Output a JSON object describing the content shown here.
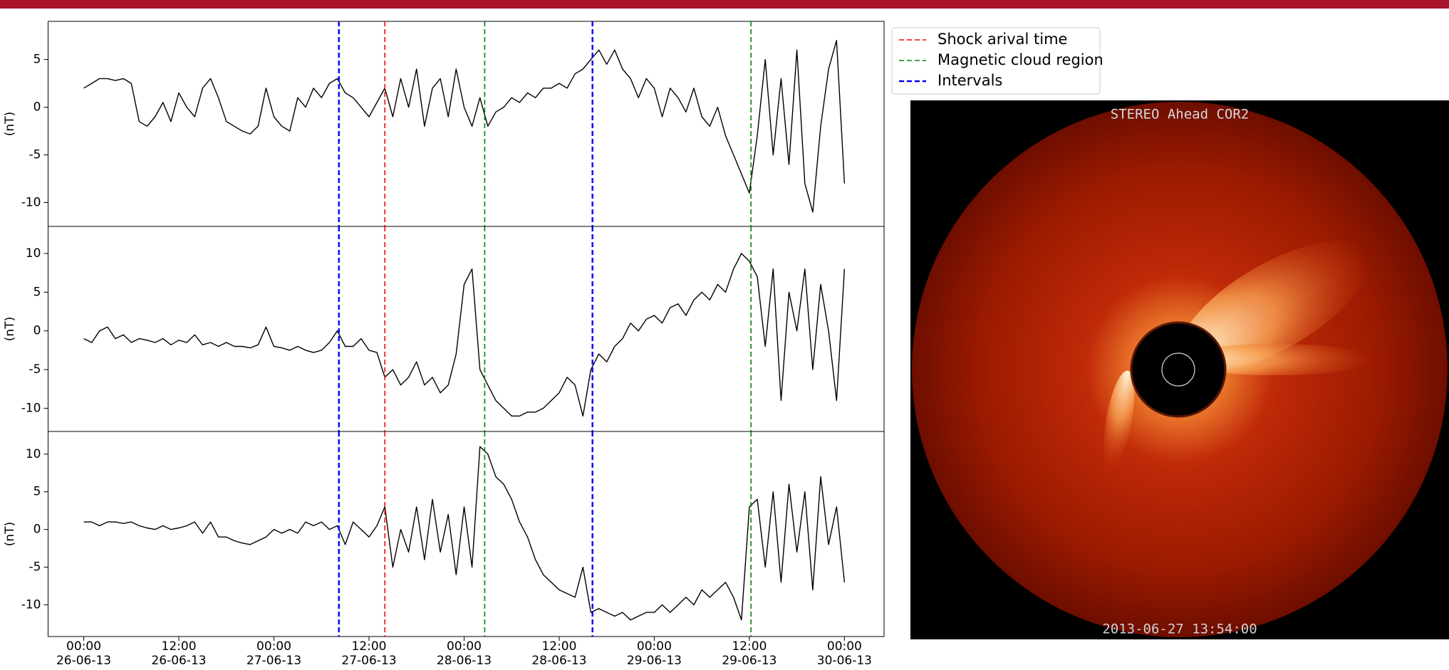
{
  "chart_data": [
    {
      "type": "line",
      "ylabel": "(nT)",
      "xlim": [
        -4.5,
        101
      ],
      "ylim": [
        -12.5,
        9
      ],
      "yticks": [
        -10,
        -5,
        0,
        5
      ],
      "x": [
        0,
        1,
        2,
        3,
        4,
        5,
        6,
        7,
        8,
        9,
        10,
        11,
        12,
        13,
        14,
        15,
        16,
        17,
        18,
        19,
        20,
        21,
        22,
        23,
        24,
        25,
        26,
        27,
        28,
        29,
        30,
        31,
        32,
        33,
        34,
        35,
        36,
        37,
        38,
        39,
        40,
        41,
        42,
        43,
        44,
        45,
        46,
        47,
        48,
        49,
        50,
        51,
        52,
        53,
        54,
        55,
        56,
        57,
        58,
        59,
        60,
        61,
        62,
        63,
        64,
        65,
        66,
        67,
        68,
        69,
        70,
        71,
        72,
        73,
        74,
        75,
        76,
        77,
        78,
        79,
        80,
        81,
        82,
        83,
        84,
        85,
        86,
        87,
        88,
        89,
        90,
        91,
        92,
        93,
        94,
        95,
        96
      ],
      "series": [
        {
          "color": "#000000",
          "values": [
            2,
            2.5,
            3,
            3,
            2.8,
            3,
            2.5,
            -1.5,
            -2,
            -1,
            0.5,
            -1.5,
            1.5,
            0,
            -1,
            2,
            3,
            1,
            -1.5,
            -2,
            -2.5,
            -2.8,
            -2,
            2,
            -1,
            -2,
            -2.5,
            1,
            0,
            2,
            1,
            2.5,
            3,
            1.5,
            1,
            0,
            -1,
            0.5,
            2,
            -1,
            3,
            0,
            4,
            -2,
            2,
            3,
            -1,
            4,
            0,
            -2,
            1,
            -2,
            -0.5,
            0,
            1,
            0.5,
            1.5,
            1,
            2,
            2,
            2.5,
            2,
            3.5,
            4,
            5,
            6,
            4.5,
            6,
            4,
            3,
            1,
            3,
            2,
            -1,
            2,
            1,
            -0.5,
            2,
            -1,
            -2,
            0,
            -3,
            -5,
            -7,
            -9,
            -3,
            5,
            -5,
            3,
            -6,
            6,
            -8,
            -11,
            -2,
            4,
            7,
            -8
          ]
        }
      ]
    },
    {
      "type": "line",
      "ylabel": "(nT)",
      "xlim": [
        -4.5,
        101
      ],
      "ylim": [
        -13,
        13.5
      ],
      "yticks": [
        -10,
        -5,
        0,
        5,
        10
      ],
      "x": [
        0,
        1,
        2,
        3,
        4,
        5,
        6,
        7,
        8,
        9,
        10,
        11,
        12,
        13,
        14,
        15,
        16,
        17,
        18,
        19,
        20,
        21,
        22,
        23,
        24,
        25,
        26,
        27,
        28,
        29,
        30,
        31,
        32,
        33,
        34,
        35,
        36,
        37,
        38,
        39,
        40,
        41,
        42,
        43,
        44,
        45,
        46,
        47,
        48,
        49,
        50,
        51,
        52,
        53,
        54,
        55,
        56,
        57,
        58,
        59,
        60,
        61,
        62,
        63,
        64,
        65,
        66,
        67,
        68,
        69,
        70,
        71,
        72,
        73,
        74,
        75,
        76,
        77,
        78,
        79,
        80,
        81,
        82,
        83,
        84,
        85,
        86,
        87,
        88,
        89,
        90,
        91,
        92,
        93,
        94,
        95,
        96
      ],
      "series": [
        {
          "color": "#000000",
          "values": [
            -1,
            -1.5,
            0,
            0.5,
            -1,
            -0.5,
            -1.5,
            -1,
            -1.2,
            -1.5,
            -1,
            -1.8,
            -1.2,
            -1.5,
            -0.5,
            -1.8,
            -1.5,
            -2,
            -1.5,
            -2,
            -2,
            -2.2,
            -1.8,
            0.5,
            -2,
            -2.2,
            -2.5,
            -2,
            -2.5,
            -2.8,
            -2.5,
            -1.5,
            0,
            -2,
            -2,
            -1,
            -2.5,
            -2.8,
            -6,
            -5,
            -7,
            -6,
            -4,
            -7,
            -6,
            -8,
            -7,
            -3,
            6,
            8,
            -5,
            -7,
            -9,
            -10,
            -11,
            -11,
            -10.5,
            -10.5,
            -10,
            -9,
            -8,
            -6,
            -7,
            -11,
            -5,
            -3,
            -4,
            -2,
            -1,
            1,
            0,
            1.5,
            2,
            1,
            3,
            3.5,
            2,
            4,
            5,
            4,
            6,
            5,
            8,
            10,
            9,
            7,
            -2,
            8,
            -9,
            5,
            0,
            8,
            -5,
            6,
            0,
            -9,
            8
          ]
        }
      ]
    },
    {
      "type": "line",
      "ylabel": "(nT)",
      "xlim": [
        -4.5,
        101
      ],
      "ylim": [
        -14.2,
        13
      ],
      "yticks": [
        -10,
        -5,
        0,
        5,
        10
      ],
      "xticks": [
        {
          "value": 0,
          "label": "00:00 26-06-13"
        },
        {
          "value": 12,
          "label": "12:00 26-06-13"
        },
        {
          "value": 24,
          "label": "00:00 27-06-13"
        },
        {
          "value": 36,
          "label": "12:00 27-06-13"
        },
        {
          "value": 48,
          "label": "00:00 28-06-13"
        },
        {
          "value": 60,
          "label": "12:00 28-06-13"
        },
        {
          "value": 72,
          "label": "00:00 29-06-13"
        },
        {
          "value": 84,
          "label": "12:00 29-06-13"
        },
        {
          "value": 96,
          "label": "00:00 30-06-13"
        }
      ],
      "x": [
        0,
        1,
        2,
        3,
        4,
        5,
        6,
        7,
        8,
        9,
        10,
        11,
        12,
        13,
        14,
        15,
        16,
        17,
        18,
        19,
        20,
        21,
        22,
        23,
        24,
        25,
        26,
        27,
        28,
        29,
        30,
        31,
        32,
        33,
        34,
        35,
        36,
        37,
        38,
        39,
        40,
        41,
        42,
        43,
        44,
        45,
        46,
        47,
        48,
        49,
        50,
        51,
        52,
        53,
        54,
        55,
        56,
        57,
        58,
        59,
        60,
        61,
        62,
        63,
        64,
        65,
        66,
        67,
        68,
        69,
        70,
        71,
        72,
        73,
        74,
        75,
        76,
        77,
        78,
        79,
        80,
        81,
        82,
        83,
        84,
        85,
        86,
        87,
        88,
        89,
        90,
        91,
        92,
        93,
        94,
        95,
        96
      ],
      "series": [
        {
          "color": "#000000",
          "values": [
            1,
            1,
            0.5,
            1,
            1,
            0.8,
            1,
            0.5,
            0.2,
            0,
            0.5,
            0,
            0.2,
            0.5,
            1,
            -0.5,
            1,
            -1,
            -1,
            -1.5,
            -1.8,
            -2,
            -1.5,
            -1,
            0,
            -0.5,
            0,
            -0.5,
            1,
            0.5,
            1,
            0,
            0.5,
            -2,
            1,
            0,
            -1,
            0.5,
            3,
            -5,
            0,
            -3,
            3,
            -4,
            4,
            -3,
            2,
            -6,
            3,
            -5,
            11,
            10,
            7,
            6,
            4,
            1,
            -1,
            -4,
            -6,
            -7,
            -8,
            -8.5,
            -9,
            -5,
            -11,
            -10.5,
            -11,
            -11.5,
            -11,
            -12,
            -11.5,
            -11,
            -11,
            -10,
            -11,
            -10,
            -9,
            -10,
            -8,
            -9,
            -8,
            -7,
            -9,
            -12,
            3,
            4,
            -5,
            5,
            -7,
            6,
            -3,
            5,
            -8,
            7,
            -2,
            3,
            -7
          ]
        }
      ]
    }
  ],
  "markers": [
    {
      "name": "Shock arival time",
      "color": "#ff0000",
      "x": [
        38.0
      ]
    },
    {
      "name": "Magnetic cloud region",
      "color": "#008000",
      "x": [
        50.6,
        84.2
      ]
    },
    {
      "name": "Intervals",
      "color": "#0000ff",
      "x": [
        32.2,
        64.2
      ]
    }
  ],
  "image": {
    "title": "STEREO Ahead COR2",
    "timestamp": "2013-06-27 13:54:00"
  }
}
